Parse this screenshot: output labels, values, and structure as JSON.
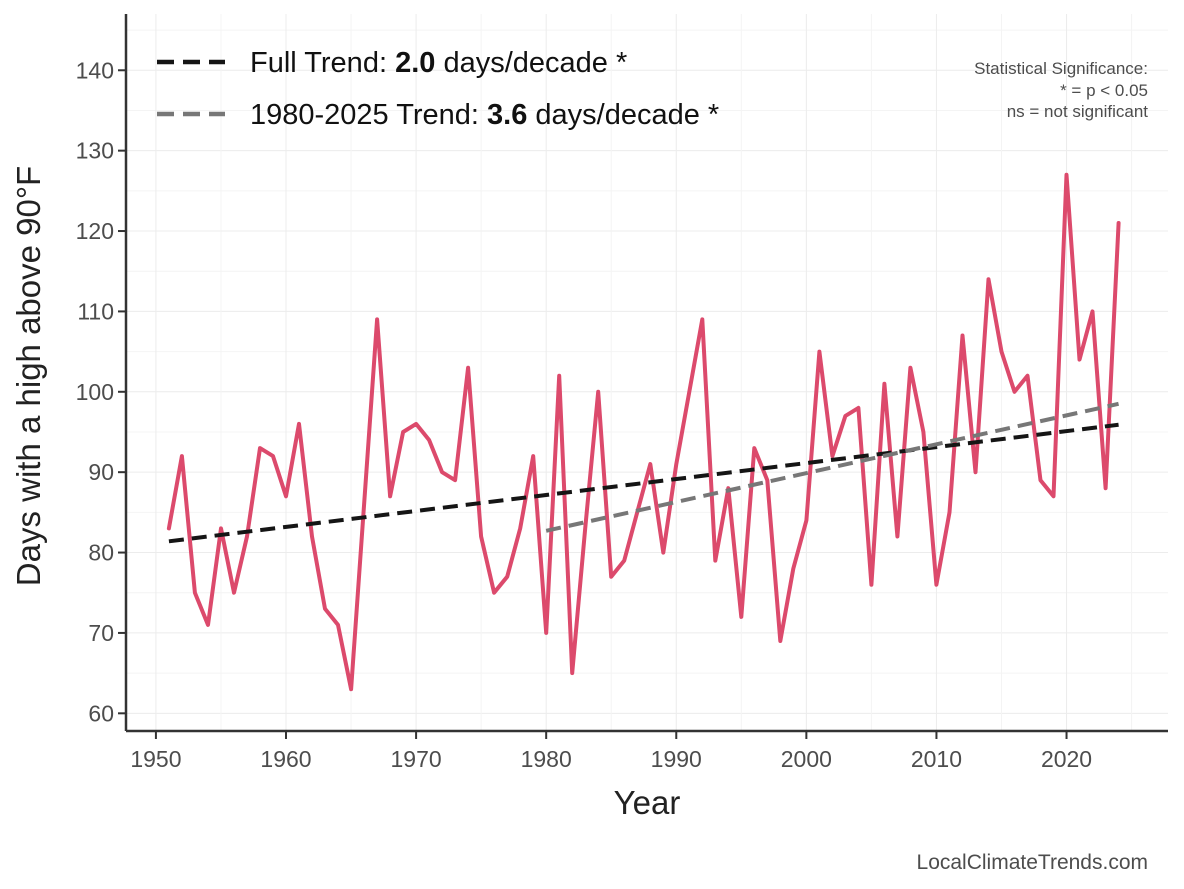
{
  "chart_data": {
    "type": "line",
    "title": "",
    "xlabel": "Year",
    "ylabel": "Days with a high above 90°F",
    "xlim": [
      1947.7,
      2027.8
    ],
    "ylim": [
      57.8,
      147.0
    ],
    "x_ticks": [
      1950,
      1960,
      1970,
      1980,
      1990,
      2000,
      2010,
      2020
    ],
    "y_ticks": [
      60,
      70,
      80,
      90,
      100,
      110,
      120,
      130,
      140
    ],
    "grid": true,
    "colors": {
      "series": "#dc4a6c",
      "full_trend": "#151515",
      "recent_trend": "#777777",
      "axis": "#333333",
      "grid": "#ececec"
    },
    "series": [
      {
        "name": "Days above 90°F",
        "x": [
          1951,
          1952,
          1953,
          1954,
          1955,
          1956,
          1957,
          1958,
          1959,
          1960,
          1961,
          1962,
          1963,
          1964,
          1965,
          1966,
          1967,
          1968,
          1969,
          1970,
          1971,
          1972,
          1973,
          1974,
          1975,
          1976,
          1977,
          1978,
          1979,
          1980,
          1981,
          1982,
          1983,
          1984,
          1985,
          1986,
          1987,
          1988,
          1989,
          1990,
          1991,
          1992,
          1993,
          1994,
          1995,
          1996,
          1997,
          1998,
          1999,
          2000,
          2001,
          2002,
          2003,
          2004,
          2005,
          2006,
          2007,
          2008,
          2009,
          2010,
          2011,
          2012,
          2013,
          2014,
          2015,
          2016,
          2017,
          2018,
          2019,
          2020,
          2021,
          2022,
          2023,
          2024
        ],
        "values": [
          83,
          92,
          75,
          71,
          83,
          75,
          82,
          93,
          92,
          87,
          96,
          82,
          73,
          71,
          63,
          86,
          109,
          87,
          95,
          96,
          94,
          90,
          89,
          103,
          82,
          75,
          77,
          83,
          92,
          70,
          102,
          65,
          83,
          100,
          77,
          79,
          85,
          91,
          80,
          91,
          100,
          109,
          79,
          88,
          72,
          93,
          89,
          69,
          78,
          84,
          105,
          92,
          97,
          98,
          76,
          101,
          82,
          103,
          95,
          76,
          85,
          107,
          90,
          114,
          105,
          100,
          102,
          89,
          87,
          127,
          104,
          110,
          88,
          121
        ]
      }
    ],
    "trends": [
      {
        "name": "Full Trend",
        "x": [
          1951,
          2024
        ],
        "y": [
          81.4,
          95.9
        ]
      },
      {
        "name": "1980-2025 Trend",
        "x": [
          1980,
          2024
        ],
        "y": [
          82.7,
          98.5
        ]
      }
    ],
    "legend": [
      {
        "prefix": "Full Trend: ",
        "value": "2.0",
        "suffix": " days/decade *"
      },
      {
        "prefix": "1980-2025 Trend: ",
        "value": "3.6",
        "suffix": " days/decade *"
      }
    ],
    "significance_note": [
      "Statistical Significance:",
      "* = p < 0.05",
      "ns = not significant"
    ],
    "source": "LocalClimateTrends.com"
  }
}
